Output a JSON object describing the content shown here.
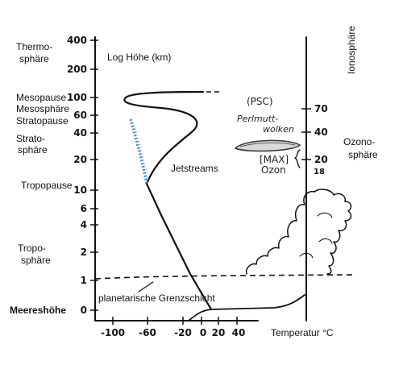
{
  "y_axis": {
    "title": "Log Höhe (km)",
    "ticks": [
      "400",
      "200",
      "100",
      "60",
      "40",
      "20",
      "10",
      "6",
      "4",
      "2",
      "1",
      "0"
    ]
  },
  "x_axis": {
    "title": "Temperatur °C",
    "ticks": [
      "-100",
      "-60",
      "-20",
      "0",
      "20",
      "40"
    ]
  },
  "left_labels": {
    "thermosphere": [
      "Thermo-",
      "sphäre"
    ],
    "mesopause": "Mesopause",
    "mesosphere": "Mesosphäre",
    "stratopause": "Stratopause",
    "stratosphere": [
      "Strato-",
      "sphäre"
    ],
    "tropopause": "Tropopause",
    "troposphere": [
      "Tropo-",
      "sphäre"
    ],
    "sea_level": "Meereshöhe"
  },
  "curve_labels": {
    "jetstreams": "Jetstreams",
    "boundary_layer": "planetarische Grenzschicht"
  },
  "right_axis": {
    "ionosphere": "Ionosphäre",
    "ozonosphere": [
      "Ozono-",
      "sphäre"
    ],
    "ticks": [
      "70",
      "40",
      "20",
      "18"
    ]
  },
  "annotations": {
    "psc": "(PSC)",
    "perlmutt": [
      "Perlmutt-",
      "wolken"
    ],
    "max": "[MAX]",
    "ozon": "Ozon"
  },
  "colors": {
    "ink": "#111111",
    "jet_blue": "#4a8fd6",
    "cloud_fill": "#d9d9d9"
  }
}
